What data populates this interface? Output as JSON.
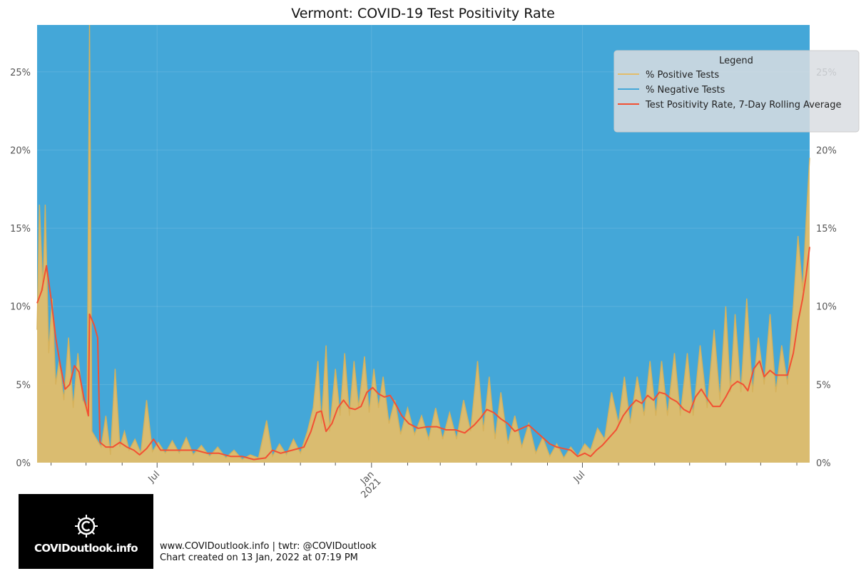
{
  "chart_data": {
    "type": "area",
    "title": "Vermont: COVID-19 Test Positivity Rate",
    "xlabel": "",
    "ylabel": "",
    "x_range": [
      "2020-03-20",
      "2022-01-12"
    ],
    "ylim": [
      0,
      28
    ],
    "y_ticks": [
      0,
      5,
      10,
      15,
      20,
      25
    ],
    "y_tick_labels": [
      "0%",
      "5%",
      "10%",
      "15%",
      "20%",
      "25%"
    ],
    "x_tick_labels": [
      {
        "date": "2020-07-01",
        "label": "Jul"
      },
      {
        "date": "2021-01-01",
        "label": "Jan\n2021"
      },
      {
        "date": "2021-07-01",
        "label": "Jul"
      }
    ],
    "x_minor_ticks": [
      "2020-04-01",
      "2020-05-01",
      "2020-06-01",
      "2020-08-01",
      "2020-09-01",
      "2020-10-01",
      "2020-11-01",
      "2020-12-01",
      "2021-02-01",
      "2021-03-01",
      "2021-04-01",
      "2021-05-01",
      "2021-06-01",
      "2021-08-01",
      "2021-09-01",
      "2021-10-01",
      "2021-11-01",
      "2021-12-01",
      "2022-01-01"
    ],
    "grid": true,
    "legend_placement": "top-right",
    "legend": {
      "title": "Legend",
      "entries": [
        "% Positive Tests",
        "% Negative Tests",
        "Test Positivity Rate, 7-Day Rolling Average"
      ]
    },
    "colors": {
      "positive": "#e3bd6a",
      "negative": "#44a7d8",
      "rolling": "#f25033",
      "positive_line": "#d6b25c"
    },
    "series": [
      {
        "name": "% Positive Tests",
        "points": [
          [
            "2020-03-20",
            8.5
          ],
          [
            "2020-03-22",
            16.5
          ],
          [
            "2020-03-25",
            11
          ],
          [
            "2020-03-27",
            16.5
          ],
          [
            "2020-03-30",
            7
          ],
          [
            "2020-04-02",
            10.5
          ],
          [
            "2020-04-05",
            5
          ],
          [
            "2020-04-08",
            6.5
          ],
          [
            "2020-04-12",
            4
          ],
          [
            "2020-04-16",
            8
          ],
          [
            "2020-04-20",
            3.5
          ],
          [
            "2020-04-24",
            7
          ],
          [
            "2020-04-28",
            4
          ],
          [
            "2020-05-02",
            3.5
          ],
          [
            "2020-05-04",
            28
          ],
          [
            "2020-05-06",
            2
          ],
          [
            "2020-05-10",
            1.5
          ],
          [
            "2020-05-14",
            1
          ],
          [
            "2020-05-18",
            3
          ],
          [
            "2020-05-22",
            0.5
          ],
          [
            "2020-05-26",
            6
          ],
          [
            "2020-05-30",
            1
          ],
          [
            "2020-06-03",
            2
          ],
          [
            "2020-06-07",
            0.8
          ],
          [
            "2020-06-12",
            1.5
          ],
          [
            "2020-06-17",
            0.6
          ],
          [
            "2020-06-22",
            4
          ],
          [
            "2020-06-27",
            0.7
          ],
          [
            "2020-07-02",
            1.3
          ],
          [
            "2020-07-08",
            0.6
          ],
          [
            "2020-07-14",
            1.4
          ],
          [
            "2020-07-20",
            0.6
          ],
          [
            "2020-07-26",
            1.6
          ],
          [
            "2020-08-01",
            0.5
          ],
          [
            "2020-08-08",
            1.1
          ],
          [
            "2020-08-15",
            0.4
          ],
          [
            "2020-08-22",
            1.0
          ],
          [
            "2020-08-29",
            0.3
          ],
          [
            "2020-09-05",
            0.8
          ],
          [
            "2020-09-12",
            0.2
          ],
          [
            "2020-09-19",
            0.5
          ],
          [
            "2020-09-26",
            0.3
          ],
          [
            "2020-10-03",
            2.7
          ],
          [
            "2020-10-08",
            0.4
          ],
          [
            "2020-10-14",
            1.2
          ],
          [
            "2020-10-20",
            0.5
          ],
          [
            "2020-10-26",
            1.5
          ],
          [
            "2020-11-01",
            0.6
          ],
          [
            "2020-11-07",
            2.0
          ],
          [
            "2020-11-12",
            3.5
          ],
          [
            "2020-11-16",
            6.5
          ],
          [
            "2020-11-19",
            2.5
          ],
          [
            "2020-11-23",
            7.5
          ],
          [
            "2020-11-26",
            2.0
          ],
          [
            "2020-12-01",
            6.0
          ],
          [
            "2020-12-05",
            3.0
          ],
          [
            "2020-12-09",
            7.0
          ],
          [
            "2020-12-13",
            3.0
          ],
          [
            "2020-12-17",
            6.5
          ],
          [
            "2020-12-21",
            3.5
          ],
          [
            "2020-12-26",
            6.8
          ],
          [
            "2020-12-30",
            3.2
          ],
          [
            "2021-01-03",
            6.0
          ],
          [
            "2021-01-07",
            3.5
          ],
          [
            "2021-01-11",
            5.5
          ],
          [
            "2021-01-16",
            2.5
          ],
          [
            "2021-01-21",
            4.0
          ],
          [
            "2021-01-26",
            1.8
          ],
          [
            "2021-02-01",
            3.5
          ],
          [
            "2021-02-07",
            1.8
          ],
          [
            "2021-02-13",
            3.0
          ],
          [
            "2021-02-19",
            1.5
          ],
          [
            "2021-02-25",
            3.5
          ],
          [
            "2021-03-03",
            1.5
          ],
          [
            "2021-03-09",
            3.2
          ],
          [
            "2021-03-15",
            1.5
          ],
          [
            "2021-03-21",
            4.0
          ],
          [
            "2021-03-27",
            2.0
          ],
          [
            "2021-04-02",
            6.5
          ],
          [
            "2021-04-07",
            2.0
          ],
          [
            "2021-04-12",
            5.5
          ],
          [
            "2021-04-17",
            1.5
          ],
          [
            "2021-04-22",
            4.5
          ],
          [
            "2021-04-28",
            1.2
          ],
          [
            "2021-05-04",
            3.0
          ],
          [
            "2021-05-10",
            1.0
          ],
          [
            "2021-05-16",
            2.5
          ],
          [
            "2021-05-22",
            0.6
          ],
          [
            "2021-05-28",
            1.6
          ],
          [
            "2021-06-03",
            0.4
          ],
          [
            "2021-06-09",
            1.2
          ],
          [
            "2021-06-15",
            0.3
          ],
          [
            "2021-06-21",
            1.0
          ],
          [
            "2021-06-27",
            0.4
          ],
          [
            "2021-07-03",
            1.2
          ],
          [
            "2021-07-08",
            0.8
          ],
          [
            "2021-07-14",
            2.2
          ],
          [
            "2021-07-20",
            1.5
          ],
          [
            "2021-07-26",
            4.5
          ],
          [
            "2021-08-01",
            2.5
          ],
          [
            "2021-08-06",
            5.5
          ],
          [
            "2021-08-11",
            2.5
          ],
          [
            "2021-08-17",
            5.5
          ],
          [
            "2021-08-23",
            3.0
          ],
          [
            "2021-08-28",
            6.5
          ],
          [
            "2021-09-02",
            3.0
          ],
          [
            "2021-09-07",
            6.5
          ],
          [
            "2021-09-12",
            3.0
          ],
          [
            "2021-09-18",
            7.0
          ],
          [
            "2021-09-23",
            3.0
          ],
          [
            "2021-09-29",
            7.0
          ],
          [
            "2021-10-04",
            3.0
          ],
          [
            "2021-10-10",
            7.5
          ],
          [
            "2021-10-16",
            3.5
          ],
          [
            "2021-10-22",
            8.5
          ],
          [
            "2021-10-27",
            4.0
          ],
          [
            "2021-11-01",
            10.0
          ],
          [
            "2021-11-05",
            4.5
          ],
          [
            "2021-11-09",
            9.5
          ],
          [
            "2021-11-14",
            4.5
          ],
          [
            "2021-11-19",
            10.5
          ],
          [
            "2021-11-24",
            4.5
          ],
          [
            "2021-11-29",
            8.0
          ],
          [
            "2021-12-04",
            5.0
          ],
          [
            "2021-12-09",
            9.5
          ],
          [
            "2021-12-14",
            4.5
          ],
          [
            "2021-12-19",
            7.5
          ],
          [
            "2021-12-24",
            5.0
          ],
          [
            "2021-12-29",
            10.0
          ],
          [
            "2022-01-02",
            14.5
          ],
          [
            "2022-01-06",
            11.0
          ],
          [
            "2022-01-09",
            15.5
          ],
          [
            "2022-01-12",
            19.5
          ]
        ]
      },
      {
        "name": "% Negative Tests",
        "note_value": "remainder to 100%"
      },
      {
        "name": "Test Positivity Rate, 7-Day Rolling Average",
        "points": [
          [
            "2020-03-20",
            10.2
          ],
          [
            "2020-03-24",
            11.0
          ],
          [
            "2020-03-28",
            12.6
          ],
          [
            "2020-04-01",
            10.5
          ],
          [
            "2020-04-05",
            8.0
          ],
          [
            "2020-04-09",
            6.2
          ],
          [
            "2020-04-13",
            4.7
          ],
          [
            "2020-04-17",
            5.0
          ],
          [
            "2020-04-21",
            6.2
          ],
          [
            "2020-04-25",
            5.8
          ],
          [
            "2020-04-29",
            4.2
          ],
          [
            "2020-05-03",
            3.0
          ],
          [
            "2020-05-04",
            9.5
          ],
          [
            "2020-05-08",
            8.8
          ],
          [
            "2020-05-11",
            8.0
          ],
          [
            "2020-05-13",
            1.3
          ],
          [
            "2020-05-18",
            1.0
          ],
          [
            "2020-05-24",
            1.0
          ],
          [
            "2020-05-30",
            1.3
          ],
          [
            "2020-06-05",
            1.0
          ],
          [
            "2020-06-11",
            0.8
          ],
          [
            "2020-06-16",
            0.5
          ],
          [
            "2020-06-22",
            0.9
          ],
          [
            "2020-06-28",
            1.5
          ],
          [
            "2020-07-04",
            0.8
          ],
          [
            "2020-07-14",
            0.8
          ],
          [
            "2020-07-24",
            0.8
          ],
          [
            "2020-08-03",
            0.8
          ],
          [
            "2020-08-13",
            0.6
          ],
          [
            "2020-08-23",
            0.6
          ],
          [
            "2020-09-02",
            0.4
          ],
          [
            "2020-09-12",
            0.4
          ],
          [
            "2020-09-22",
            0.2
          ],
          [
            "2020-10-02",
            0.3
          ],
          [
            "2020-10-08",
            0.8
          ],
          [
            "2020-10-15",
            0.6
          ],
          [
            "2020-10-25",
            0.8
          ],
          [
            "2020-11-04",
            1.0
          ],
          [
            "2020-11-10",
            2.0
          ],
          [
            "2020-11-15",
            3.2
          ],
          [
            "2020-11-19",
            3.3
          ],
          [
            "2020-11-23",
            2.0
          ],
          [
            "2020-11-28",
            2.5
          ],
          [
            "2020-12-03",
            3.5
          ],
          [
            "2020-12-08",
            4.0
          ],
          [
            "2020-12-13",
            3.5
          ],
          [
            "2020-12-18",
            3.4
          ],
          [
            "2020-12-23",
            3.6
          ],
          [
            "2020-12-28",
            4.5
          ],
          [
            "2021-01-02",
            4.8
          ],
          [
            "2021-01-07",
            4.4
          ],
          [
            "2021-01-12",
            4.2
          ],
          [
            "2021-01-17",
            4.3
          ],
          [
            "2021-01-22",
            3.7
          ],
          [
            "2021-01-27",
            3.0
          ],
          [
            "2021-02-02",
            2.5
          ],
          [
            "2021-02-10",
            2.2
          ],
          [
            "2021-02-18",
            2.3
          ],
          [
            "2021-02-26",
            2.3
          ],
          [
            "2021-03-06",
            2.1
          ],
          [
            "2021-03-14",
            2.1
          ],
          [
            "2021-03-22",
            1.9
          ],
          [
            "2021-03-30",
            2.4
          ],
          [
            "2021-04-05",
            2.9
          ],
          [
            "2021-04-10",
            3.4
          ],
          [
            "2021-04-16",
            3.2
          ],
          [
            "2021-04-22",
            2.8
          ],
          [
            "2021-04-28",
            2.5
          ],
          [
            "2021-05-04",
            2.0
          ],
          [
            "2021-05-10",
            2.2
          ],
          [
            "2021-05-16",
            2.4
          ],
          [
            "2021-05-22",
            2.0
          ],
          [
            "2021-05-28",
            1.6
          ],
          [
            "2021-06-03",
            1.2
          ],
          [
            "2021-06-09",
            1.0
          ],
          [
            "2021-06-15",
            0.9
          ],
          [
            "2021-06-21",
            0.8
          ],
          [
            "2021-06-27",
            0.4
          ],
          [
            "2021-07-03",
            0.6
          ],
          [
            "2021-07-08",
            0.4
          ],
          [
            "2021-07-13",
            0.8
          ],
          [
            "2021-07-18",
            1.1
          ],
          [
            "2021-07-24",
            1.6
          ],
          [
            "2021-07-30",
            2.1
          ],
          [
            "2021-08-05",
            3.0
          ],
          [
            "2021-08-11",
            3.6
          ],
          [
            "2021-08-16",
            4.0
          ],
          [
            "2021-08-21",
            3.8
          ],
          [
            "2021-08-26",
            4.3
          ],
          [
            "2021-08-31",
            4.0
          ],
          [
            "2021-09-05",
            4.5
          ],
          [
            "2021-09-10",
            4.4
          ],
          [
            "2021-09-15",
            4.1
          ],
          [
            "2021-09-20",
            3.9
          ],
          [
            "2021-09-26",
            3.4
          ],
          [
            "2021-10-01",
            3.2
          ],
          [
            "2021-10-06",
            4.2
          ],
          [
            "2021-10-11",
            4.7
          ],
          [
            "2021-10-16",
            4.1
          ],
          [
            "2021-10-21",
            3.6
          ],
          [
            "2021-10-27",
            3.6
          ],
          [
            "2021-11-01",
            4.2
          ],
          [
            "2021-11-06",
            4.9
          ],
          [
            "2021-11-11",
            5.2
          ],
          [
            "2021-11-16",
            5.0
          ],
          [
            "2021-11-20",
            4.6
          ],
          [
            "2021-11-25",
            6.0
          ],
          [
            "2021-11-30",
            6.5
          ],
          [
            "2021-12-04",
            5.5
          ],
          [
            "2021-12-09",
            5.9
          ],
          [
            "2021-12-14",
            5.6
          ],
          [
            "2021-12-19",
            5.6
          ],
          [
            "2021-12-24",
            5.6
          ],
          [
            "2021-12-29",
            7.0
          ],
          [
            "2022-01-02",
            9.0
          ],
          [
            "2022-01-06",
            10.5
          ],
          [
            "2022-01-09",
            12.0
          ],
          [
            "2022-01-12",
            13.8
          ]
        ]
      }
    ]
  },
  "logo": {
    "text": "COVIDoutlook.info"
  },
  "footer": {
    "line1": "www.COVIDoutlook.info | twtr: @COVIDoutlook",
    "line2": "Chart created on 13 Jan, 2022 at 07:19 PM"
  }
}
